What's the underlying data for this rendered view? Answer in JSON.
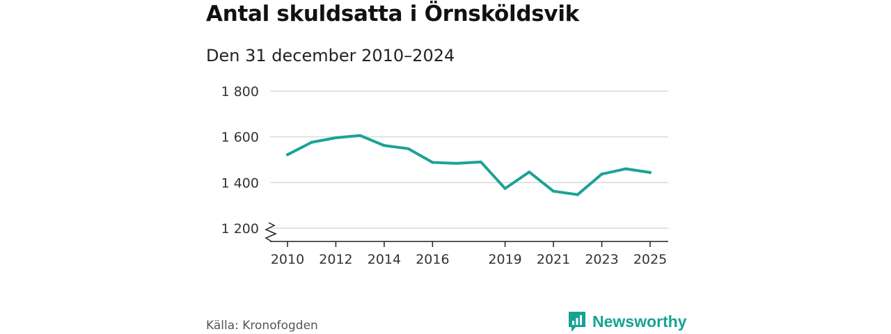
{
  "title": "Antal skuldsatta i Örnsköldsvik",
  "subtitle": "Den 31 december 2010–2024",
  "source": "Källa: Kronofogden",
  "brand": {
    "name": "Newsworthy",
    "icon": "newsworthy-logo-icon",
    "color": "#16a394"
  },
  "colors": {
    "line": "#1aa396",
    "grid": "#d9d9d9",
    "axis": "#222222"
  },
  "chart_data": {
    "type": "line",
    "title": "Antal skuldsatta i Örnsköldsvik",
    "subtitle": "Den 31 december 2010–2024",
    "xlabel": "",
    "ylabel": "",
    "ylim": [
      1200,
      1800
    ],
    "xlim": [
      2010,
      2025
    ],
    "y_ticks": [
      {
        "value": 1200,
        "label": "1 200"
      },
      {
        "value": 1400,
        "label": "1 400"
      },
      {
        "value": 1600,
        "label": "1 600"
      },
      {
        "value": 1800,
        "label": "1 800"
      }
    ],
    "x_ticks": [
      {
        "value": 2010,
        "label": "2010"
      },
      {
        "value": 2012,
        "label": "2012"
      },
      {
        "value": 2014,
        "label": "2014"
      },
      {
        "value": 2016,
        "label": "2016"
      },
      {
        "value": 2019,
        "label": "2019"
      },
      {
        "value": 2021,
        "label": "2021"
      },
      {
        "value": 2023,
        "label": "2023"
      },
      {
        "value": 2025,
        "label": "2025"
      }
    ],
    "axis_break": true,
    "grid": true,
    "series": [
      {
        "name": "Antal skuldsatta",
        "x": [
          2010,
          2011,
          2012,
          2013,
          2014,
          2015,
          2016,
          2017,
          2018,
          2019,
          2020,
          2021,
          2022,
          2023,
          2024,
          2025
        ],
        "values": [
          1522,
          1576,
          1596,
          1606,
          1562,
          1548,
          1488,
          1484,
          1490,
          1374,
          1446,
          1362,
          1347,
          1437,
          1460,
          1444
        ]
      }
    ]
  }
}
